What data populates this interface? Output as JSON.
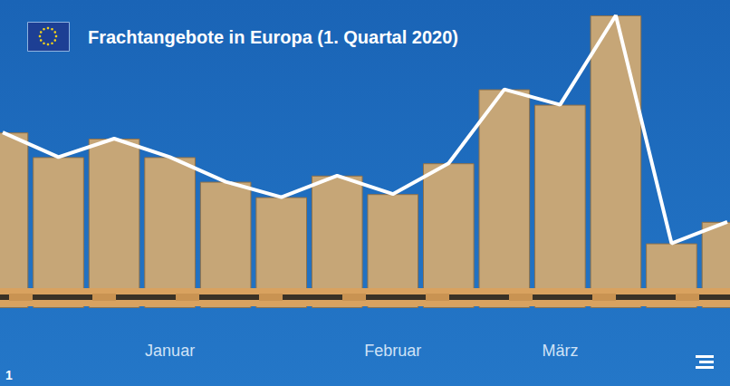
{
  "chart_data": {
    "type": "line",
    "title": "Frachtangebote in Europa (1. Quartal 2020)",
    "categories": [
      null,
      null,
      null,
      "Januar",
      null,
      null,
      null,
      "Februar",
      null,
      null,
      "März",
      null,
      null,
      null
    ],
    "values": [
      57,
      49,
      55,
      49,
      41,
      36,
      43,
      37,
      47,
      71,
      66,
      95,
      21,
      28
    ],
    "color": "#ffffff",
    "ylim": [
      0,
      100
    ],
    "grid": false,
    "tick_labels": "x",
    "annotations": [
      "1"
    ]
  }
}
